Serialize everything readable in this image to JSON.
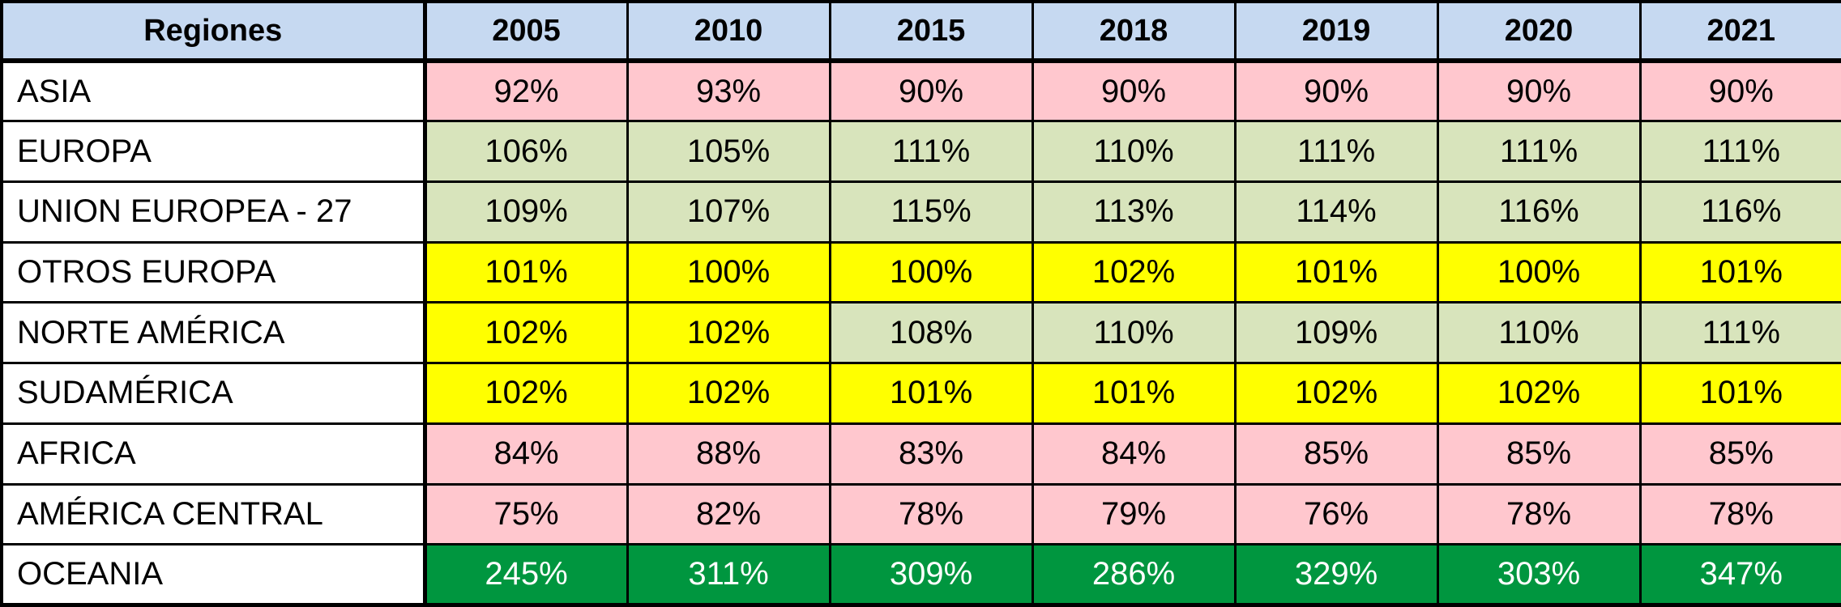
{
  "colors": {
    "header_bg": "#c6d9f1",
    "pink": "#ffc7ce",
    "light_green": "#d8e4bc",
    "yellow": "#ffff00",
    "dark_green": "#00963f",
    "text_dark": "#000000",
    "text_light": "#ffffff"
  },
  "chart_data": {
    "type": "table",
    "header_label": "Regiones",
    "years": [
      "2005",
      "2010",
      "2015",
      "2018",
      "2019",
      "2020",
      "2021"
    ],
    "rows": [
      {
        "region": "ASIA",
        "values": [
          "92%",
          "93%",
          "90%",
          "90%",
          "90%",
          "90%",
          "90%"
        ],
        "fills": [
          "pink",
          "pink",
          "pink",
          "pink",
          "pink",
          "pink",
          "pink"
        ]
      },
      {
        "region": "EUROPA",
        "values": [
          "106%",
          "105%",
          "111%",
          "110%",
          "111%",
          "111%",
          "111%"
        ],
        "fills": [
          "light_green",
          "light_green",
          "light_green",
          "light_green",
          "light_green",
          "light_green",
          "light_green"
        ]
      },
      {
        "region": "UNION EUROPEA - 27",
        "values": [
          "109%",
          "107%",
          "115%",
          "113%",
          "114%",
          "116%",
          "116%"
        ],
        "fills": [
          "light_green",
          "light_green",
          "light_green",
          "light_green",
          "light_green",
          "light_green",
          "light_green"
        ]
      },
      {
        "region": "OTROS EUROPA",
        "values": [
          "101%",
          "100%",
          "100%",
          "102%",
          "101%",
          "100%",
          "101%"
        ],
        "fills": [
          "yellow",
          "yellow",
          "yellow",
          "yellow",
          "yellow",
          "yellow",
          "yellow"
        ]
      },
      {
        "region": "NORTE AMÉRICA",
        "values": [
          "102%",
          "102%",
          "108%",
          "110%",
          "109%",
          "110%",
          "111%"
        ],
        "fills": [
          "yellow",
          "yellow",
          "light_green",
          "light_green",
          "light_green",
          "light_green",
          "light_green"
        ]
      },
      {
        "region": "SUDAMÉRICA",
        "values": [
          "102%",
          "102%",
          "101%",
          "101%",
          "102%",
          "102%",
          "101%"
        ],
        "fills": [
          "yellow",
          "yellow",
          "yellow",
          "yellow",
          "yellow",
          "yellow",
          "yellow"
        ]
      },
      {
        "region": "AFRICA",
        "values": [
          "84%",
          "88%",
          "83%",
          "84%",
          "85%",
          "85%",
          "85%"
        ],
        "fills": [
          "pink",
          "pink",
          "pink",
          "pink",
          "pink",
          "pink",
          "pink"
        ]
      },
      {
        "region": "AMÉRICA CENTRAL",
        "values": [
          "75%",
          "82%",
          "78%",
          "79%",
          "76%",
          "78%",
          "78%"
        ],
        "fills": [
          "pink",
          "pink",
          "pink",
          "pink",
          "pink",
          "pink",
          "pink"
        ]
      },
      {
        "region": "OCEANIA",
        "values": [
          "245%",
          "311%",
          "309%",
          "286%",
          "329%",
          "303%",
          "347%"
        ],
        "fills": [
          "dark_green",
          "dark_green",
          "dark_green",
          "dark_green",
          "dark_green",
          "dark_green",
          "dark_green"
        ]
      }
    ]
  }
}
